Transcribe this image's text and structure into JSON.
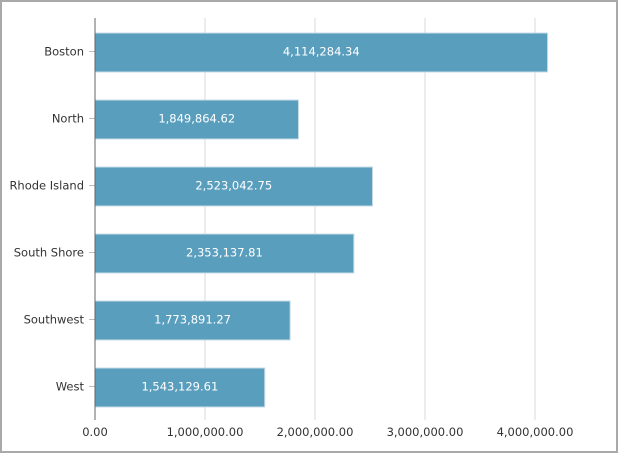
{
  "chart_data": {
    "type": "bar",
    "orientation": "horizontal",
    "categories": [
      "Boston",
      "North",
      "Rhode Island",
      "South Shore",
      "Southwest",
      "West"
    ],
    "values": [
      4114284.34,
      1849864.62,
      2523042.75,
      2353137.81,
      1773891.27,
      1543129.61
    ],
    "data_labels": [
      "4,114,284.34",
      "1,849,864.62",
      "2,523,042.75",
      "2,353,137.81",
      "1,773,891.27",
      "1,543,129.61"
    ],
    "x_ticks": [
      0,
      1000000,
      2000000,
      3000000,
      4000000
    ],
    "x_tick_labels": [
      "0.00",
      "1,000,000.00",
      "2,000,000.00",
      "3,000,000.00",
      "4,000,000.00"
    ],
    "xlim": [
      0,
      4700000
    ],
    "grid": true,
    "title": "",
    "xlabel": "",
    "ylabel": "",
    "colors": {
      "bar": "#5a9ebe",
      "bar_edge": "#c8dce8",
      "grid": "#d9d9d9",
      "axis": "#666666",
      "label": "#333333",
      "data_label": "#ffffff"
    }
  }
}
